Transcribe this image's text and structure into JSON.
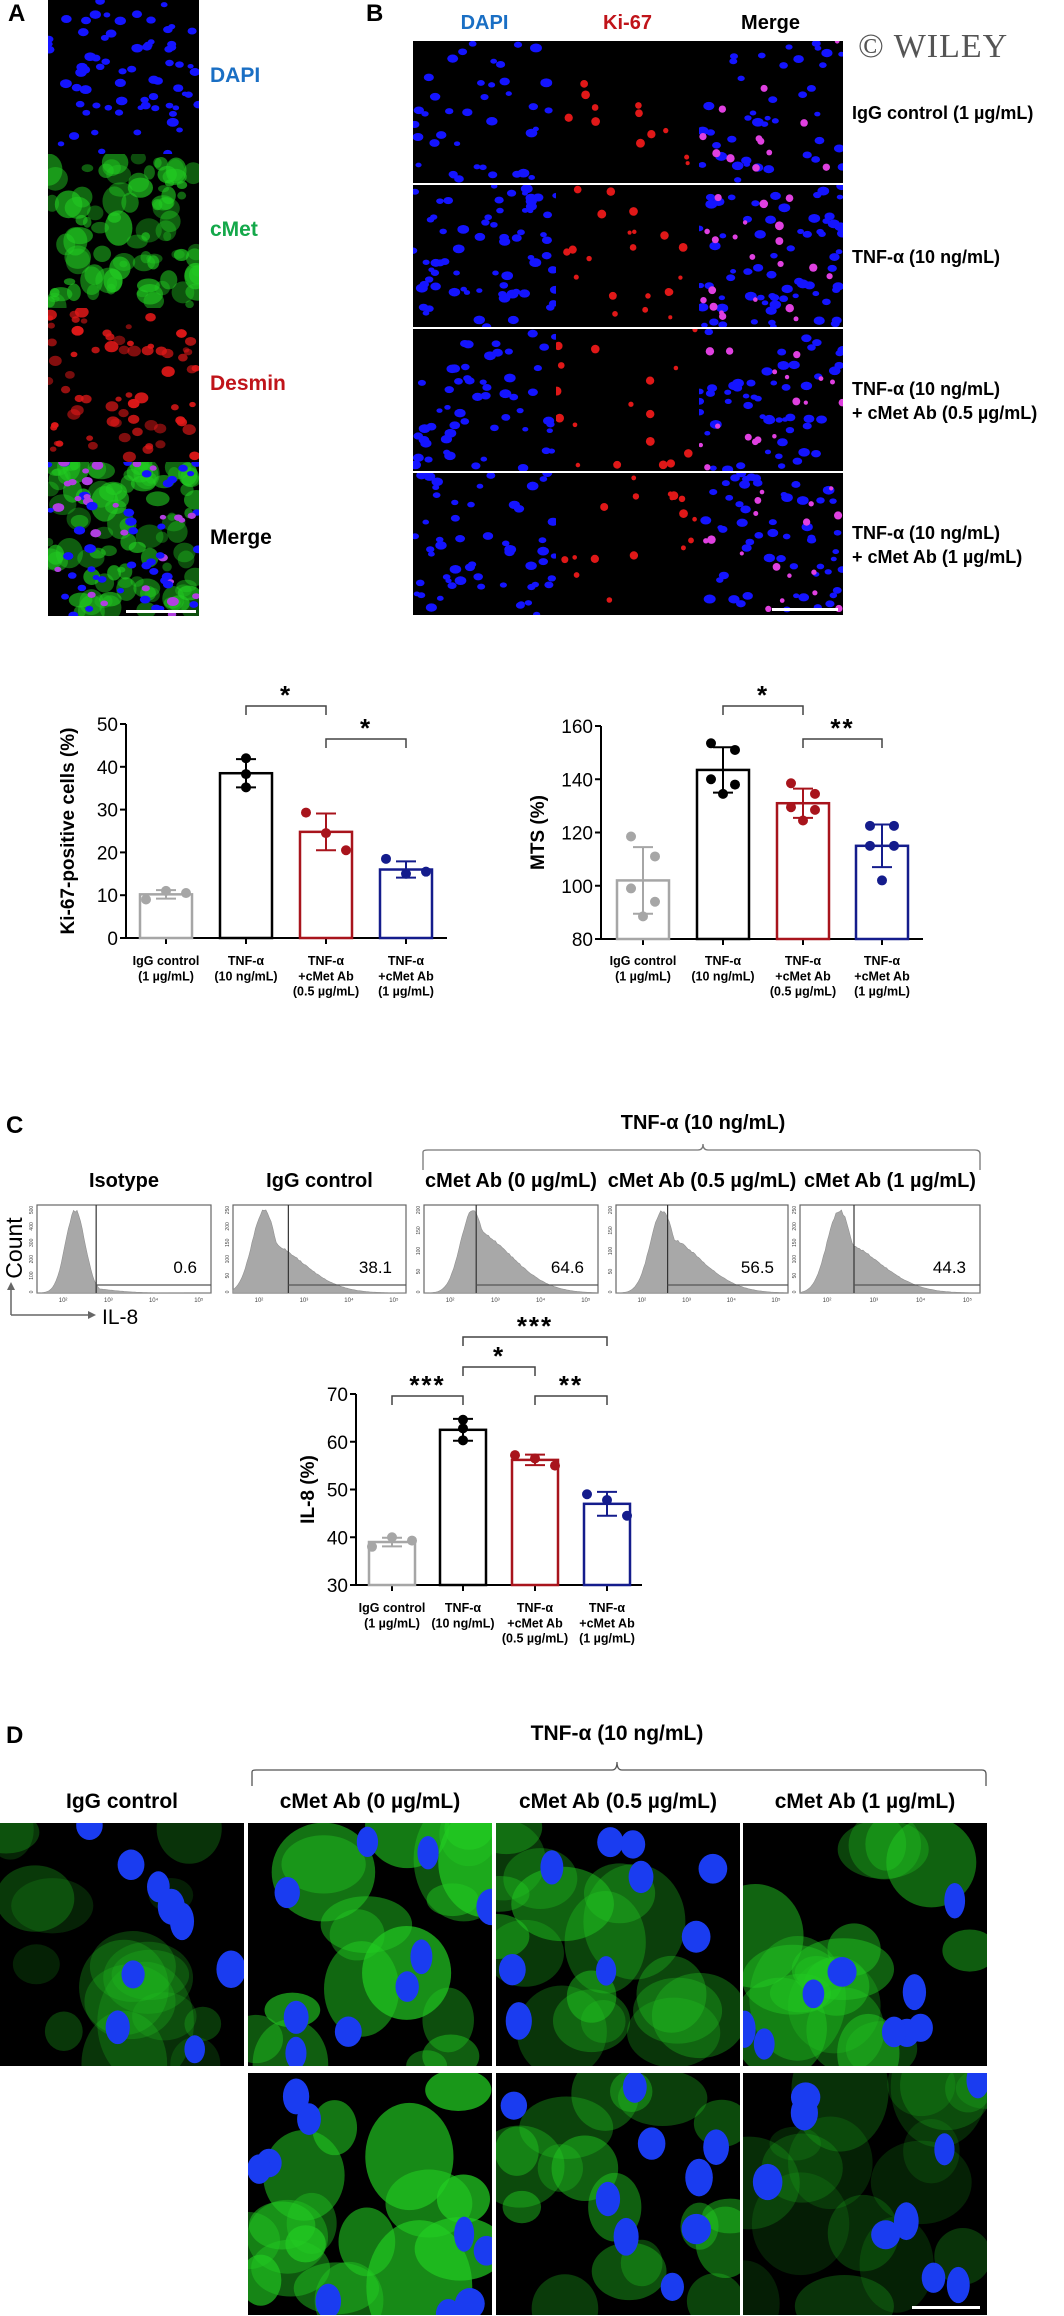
{
  "watermark": "© WILEY",
  "panel_a": {
    "letter": "A",
    "channels": [
      {
        "label": "DAPI",
        "color": "#1a6fc4",
        "stain": "#1010ff"
      },
      {
        "label": "cMet",
        "color": "#14a84a",
        "stain": "#22dd22"
      },
      {
        "label": "Desmin",
        "color": "#c0141a",
        "stain": "#e01010"
      },
      {
        "label": "Merge",
        "color": "#000000",
        "stain": "merge"
      }
    ]
  },
  "panel_b": {
    "letter": "B",
    "columns": [
      {
        "label": "DAPI",
        "color": "#1a6fc4"
      },
      {
        "label": "Ki-67",
        "color": "#c0141a"
      },
      {
        "label": "Merge",
        "color": "#000000"
      }
    ],
    "rows": [
      {
        "line1": "IgG control (1 µg/mL)",
        "line2": ""
      },
      {
        "line1": "TNF-α (10 ng/mL)",
        "line2": ""
      },
      {
        "line1": "TNF-α (10 ng/mL)",
        "line2": "+ cMet Ab (0.5 µg/mL)"
      },
      {
        "line1": "TNF-α (10 ng/mL)",
        "line2": "+ cMet Ab (1 µg/mL)"
      }
    ]
  },
  "panel_c": {
    "letter": "C",
    "group_title": "TNF-α (10 ng/mL)",
    "axis_y_label": "Count",
    "axis_x_label": "IL-8",
    "histograms": [
      {
        "title": "Isotype",
        "value": "0.6",
        "y_ticks": [
          "0",
          "100",
          "200",
          "300",
          "400",
          "500"
        ]
      },
      {
        "title": "IgG control",
        "value": "38.1",
        "y_ticks": [
          "0",
          "50",
          "100",
          "150",
          "200",
          "250"
        ]
      },
      {
        "title": "cMet Ab (0 µg/mL)",
        "value": "64.6",
        "y_ticks": [
          "0",
          "50",
          "100",
          "150",
          "200"
        ]
      },
      {
        "title": "cMet Ab (0.5 µg/mL)",
        "value": "56.5",
        "y_ticks": [
          "0",
          "50",
          "100",
          "150",
          "200"
        ]
      },
      {
        "title": "cMet Ab (1 µg/mL)",
        "value": "44.3",
        "y_ticks": [
          "0",
          "50",
          "100",
          "150",
          "200",
          "250"
        ]
      }
    ],
    "x_ticks": [
      "10²",
      "10³",
      "10⁴",
      "10⁵"
    ]
  },
  "panel_d": {
    "letter": "D",
    "group_title": "TNF-α (10 ng/mL)",
    "columns": [
      "IgG control",
      "cMet Ab (0 µg/mL)",
      "cMet Ab (0.5 µg/mL)",
      "cMet Ab (1 µg/mL)"
    ]
  },
  "chart_data": [
    {
      "id": "ki67",
      "type": "bar",
      "title": "",
      "xlabel": "",
      "ylabel": "Ki-67-positive cells (%)",
      "ylim": [
        0,
        50
      ],
      "yticks": [
        0,
        10,
        20,
        30,
        40,
        50
      ],
      "categories": [
        [
          "IgG control",
          "(1 µg/mL)"
        ],
        [
          "TNF-α",
          "(10 ng/mL)"
        ],
        [
          "TNF-α",
          "+cMet Ab",
          "(0.5 µg/mL)"
        ],
        [
          "TNF-α",
          "+cMet Ab",
          "(1 µg/mL)"
        ]
      ],
      "colors": [
        "#a6a6a6",
        "#000000",
        "#a8141c",
        "#141c8c"
      ],
      "means": [
        10.2,
        38.5,
        24.8,
        16.0
      ],
      "sd": [
        1.0,
        3.3,
        4.3,
        1.9
      ],
      "points": [
        [
          9.0,
          11.0,
          10.5
        ],
        [
          42.0,
          38.3,
          35.2
        ],
        [
          29.3,
          24.5,
          20.5
        ],
        [
          18.5,
          15.0,
          15.5
        ]
      ],
      "significance": [
        {
          "from": 1,
          "to": 2,
          "label": "*",
          "level": 1
        },
        {
          "from": 2,
          "to": 3,
          "label": "*",
          "level": 0
        }
      ]
    },
    {
      "id": "mts",
      "type": "bar",
      "title": "",
      "xlabel": "",
      "ylabel": "MTS (%)",
      "ylim": [
        80,
        160
      ],
      "yticks": [
        80,
        100,
        120,
        140,
        160
      ],
      "categories": [
        [
          "IgG control",
          "(1 µg/mL)"
        ],
        [
          "TNF-α",
          "(10 ng/mL)"
        ],
        [
          "TNF-α",
          "+cMet Ab",
          "(0.5 µg/mL)"
        ],
        [
          "TNF-α",
          "+cMet Ab",
          "(1 µg/mL)"
        ]
      ],
      "colors": [
        "#a6a6a6",
        "#000000",
        "#a8141c",
        "#141c8c"
      ],
      "means": [
        102.0,
        143.5,
        131.0,
        115.0
      ],
      "sd": [
        12.5,
        8.5,
        5.5,
        8.0
      ],
      "points": [
        [
          118.5,
          111.0,
          99.0,
          94.0,
          88.5
        ],
        [
          153.5,
          151.0,
          140.0,
          138.0,
          134.5
        ],
        [
          138.5,
          134.5,
          129.5,
          128.5,
          124.5
        ],
        [
          122.5,
          122.5,
          115.0,
          115.0,
          102.0
        ]
      ],
      "significance": [
        {
          "from": 1,
          "to": 2,
          "label": "*",
          "level": 1
        },
        {
          "from": 2,
          "to": 3,
          "label": "**",
          "level": 0
        }
      ]
    },
    {
      "id": "il8",
      "type": "bar",
      "title": "",
      "xlabel": "",
      "ylabel": "IL-8 (%)",
      "ylim": [
        30,
        70
      ],
      "yticks": [
        30,
        40,
        50,
        60,
        70
      ],
      "categories": [
        [
          "IgG control",
          "(1 µg/mL)"
        ],
        [
          "TNF-α",
          "(10 ng/mL)"
        ],
        [
          "TNF-α",
          "+cMet Ab",
          "(0.5 µg/mL)"
        ],
        [
          "TNF-α",
          "+cMet Ab",
          "(1 µg/mL)"
        ]
      ],
      "colors": [
        "#a6a6a6",
        "#000000",
        "#a8141c",
        "#141c8c"
      ],
      "means": [
        39.0,
        62.5,
        56.2,
        47.0
      ],
      "sd": [
        0.9,
        2.3,
        1.1,
        2.5
      ],
      "points": [
        [
          38.0,
          40.0,
          39.3
        ],
        [
          64.6,
          62.8,
          60.3
        ],
        [
          57.2,
          56.5,
          55.0
        ],
        [
          49.0,
          47.8,
          44.5
        ]
      ],
      "significance": [
        {
          "from": 0,
          "to": 1,
          "label": "***",
          "level": 0
        },
        {
          "from": 2,
          "to": 3,
          "label": "**",
          "level": 0
        },
        {
          "from": 1,
          "to": 2,
          "label": "*",
          "level": 1
        },
        {
          "from": 1,
          "to": 3,
          "label": "***",
          "level": 2
        }
      ]
    }
  ]
}
